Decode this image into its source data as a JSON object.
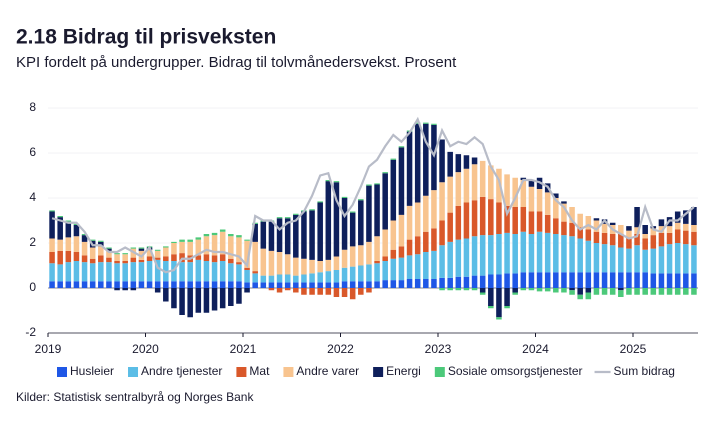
{
  "chart_data": {
    "type": "bar",
    "stacked": true,
    "title": "2.18 Bidrag til prisveksten",
    "subtitle": "KPI fordelt på undergrupper. Bidrag til tolvmånedersvekst. Prosent",
    "source": "Kilder: Statistisk sentralbyrå og Norges Bank",
    "categories": [
      "2019",
      null,
      null,
      null,
      null,
      null,
      null,
      null,
      null,
      null,
      null,
      null,
      "2020",
      null,
      null,
      null,
      null,
      null,
      null,
      null,
      null,
      null,
      null,
      null,
      "2021",
      null,
      null,
      null,
      null,
      null,
      null,
      null,
      null,
      null,
      null,
      null,
      "2022",
      null,
      null,
      null,
      null,
      null,
      null,
      null,
      null,
      null,
      null,
      null,
      "2023",
      null,
      null,
      null,
      null,
      null,
      null,
      null,
      null,
      null,
      null,
      null,
      "2024",
      null,
      null,
      null,
      null,
      null,
      null,
      null,
      null,
      null,
      null,
      null,
      "2025",
      null,
      null,
      null,
      null,
      null,
      null,
      null
    ],
    "ylim": [
      -2,
      8
    ],
    "yticks": [
      -2,
      0,
      2,
      4,
      6,
      8
    ],
    "series": [
      {
        "name": "Husleier",
        "color": "#1f57e6",
        "values": [
          0.3,
          0.3,
          0.3,
          0.3,
          0.3,
          0.3,
          0.3,
          0.3,
          0.3,
          0.3,
          0.3,
          0.3,
          0.3,
          0.3,
          0.3,
          0.3,
          0.3,
          0.3,
          0.3,
          0.3,
          0.3,
          0.3,
          0.3,
          0.3,
          0.25,
          0.25,
          0.25,
          0.25,
          0.25,
          0.25,
          0.25,
          0.25,
          0.25,
          0.25,
          0.25,
          0.25,
          0.3,
          0.3,
          0.3,
          0.3,
          0.3,
          0.35,
          0.35,
          0.35,
          0.4,
          0.4,
          0.4,
          0.4,
          0.45,
          0.45,
          0.5,
          0.5,
          0.55,
          0.55,
          0.6,
          0.6,
          0.65,
          0.65,
          0.7,
          0.7,
          0.7,
          0.7,
          0.7,
          0.7,
          0.7,
          0.7,
          0.7,
          0.7,
          0.7,
          0.7,
          0.7,
          0.7,
          0.7,
          0.7,
          0.65,
          0.65,
          0.65,
          0.65,
          0.65,
          0.65
        ]
      },
      {
        "name": "Andre tjenester",
        "color": "#5bbde6",
        "values": [
          0.8,
          0.75,
          0.85,
          0.9,
          0.85,
          0.8,
          0.85,
          0.85,
          0.8,
          0.8,
          0.85,
          0.85,
          0.9,
          0.95,
          0.9,
          0.9,
          0.85,
          0.85,
          0.95,
          0.9,
          0.85,
          0.9,
          0.8,
          0.75,
          0.55,
          0.4,
          0.3,
          0.3,
          0.35,
          0.35,
          0.3,
          0.35,
          0.4,
          0.45,
          0.5,
          0.55,
          0.6,
          0.65,
          0.7,
          0.75,
          0.8,
          0.85,
          0.95,
          1.0,
          1.05,
          1.1,
          1.2,
          1.25,
          1.45,
          1.6,
          1.65,
          1.7,
          1.75,
          1.8,
          1.75,
          1.8,
          1.8,
          1.75,
          1.8,
          1.7,
          1.8,
          1.75,
          1.7,
          1.65,
          1.6,
          1.5,
          1.4,
          1.3,
          1.25,
          1.2,
          1.1,
          1.05,
          1.2,
          1.0,
          1.1,
          1.2,
          1.3,
          1.35,
          1.3,
          1.25
        ]
      },
      {
        "name": "Mat",
        "color": "#d9582a",
        "values": [
          0.5,
          0.6,
          0.5,
          0.4,
          0.3,
          0.2,
          0.3,
          0.2,
          0.1,
          0.1,
          0.2,
          0.1,
          0.2,
          0.1,
          0.2,
          0.3,
          0.4,
          0.3,
          0.2,
          0.3,
          0.3,
          0.3,
          0.2,
          0.1,
          0.1,
          0.1,
          0.0,
          -0.1,
          -0.2,
          -0.1,
          -0.2,
          -0.3,
          -0.3,
          -0.3,
          -0.3,
          -0.4,
          -0.4,
          -0.5,
          -0.3,
          -0.2,
          0.1,
          0.2,
          0.4,
          0.5,
          0.7,
          0.8,
          0.9,
          1.0,
          1.1,
          1.3,
          1.5,
          1.6,
          1.6,
          1.7,
          1.6,
          1.4,
          1.2,
          1.2,
          1.1,
          1.0,
          0.9,
          0.8,
          0.7,
          0.6,
          0.6,
          0.5,
          0.5,
          0.5,
          0.5,
          0.5,
          0.6,
          0.5,
          0.5,
          0.5,
          0.6,
          0.6,
          0.5,
          0.6,
          0.6,
          0.6
        ]
      },
      {
        "name": "Andre varer",
        "color": "#f8c48f",
        "values": [
          0.6,
          0.5,
          0.6,
          0.7,
          0.6,
          0.5,
          0.4,
          0.3,
          0.3,
          0.3,
          0.4,
          0.4,
          0.3,
          0.3,
          0.4,
          0.5,
          0.5,
          0.6,
          0.7,
          0.8,
          0.9,
          1.0,
          1.0,
          1.1,
          1.2,
          1.3,
          1.2,
          1.1,
          1.0,
          0.9,
          0.8,
          0.7,
          0.6,
          0.5,
          0.5,
          0.6,
          0.8,
          0.9,
          0.9,
          1.0,
          1.1,
          1.2,
          1.3,
          1.4,
          1.5,
          1.5,
          1.6,
          1.7,
          1.7,
          1.6,
          1.5,
          1.5,
          1.6,
          1.6,
          1.5,
          1.5,
          1.4,
          1.3,
          1.2,
          1.1,
          1.0,
          1.0,
          0.9,
          0.8,
          0.7,
          0.6,
          0.6,
          0.5,
          0.4,
          0.4,
          0.4,
          0.3,
          0.3,
          0.2,
          0.3,
          0.3,
          0.3,
          0.3,
          0.3,
          0.3
        ]
      },
      {
        "name": "Energi",
        "color": "#0e1f5b",
        "values": [
          1.2,
          1.0,
          0.7,
          0.5,
          0.3,
          0.3,
          0.2,
          0.1,
          -0.1,
          -0.1,
          -0.1,
          0.1,
          0.1,
          -0.2,
          -0.6,
          -0.9,
          -1.2,
          -1.3,
          -1.1,
          -1.1,
          -1.0,
          -0.9,
          -0.8,
          -0.7,
          -0.2,
          0.8,
          1.2,
          1.3,
          1.5,
          1.6,
          1.9,
          2.1,
          2.2,
          2.6,
          3.5,
          3.3,
          2.3,
          1.5,
          2.0,
          2.5,
          2.3,
          2.5,
          2.7,
          3.0,
          3.3,
          3.5,
          3.2,
          2.9,
          1.9,
          1.1,
          0.8,
          0.6,
          0.3,
          -0.2,
          -0.8,
          -1.3,
          -0.8,
          -0.2,
          0.1,
          0.3,
          0.5,
          0.4,
          0.2,
          0.1,
          -0.1,
          -0.3,
          -0.2,
          0.1,
          0.2,
          0.1,
          -0.1,
          0.2,
          0.9,
          0.4,
          0.1,
          0.3,
          0.4,
          0.5,
          0.6,
          0.8
        ]
      },
      {
        "name": "Sosiale omsorgstjenester",
        "color": "#4cc97a",
        "values": [
          0.05,
          0.05,
          0.05,
          0.05,
          0.05,
          0.05,
          0.05,
          0.05,
          0.05,
          0.05,
          0.05,
          0.05,
          0.05,
          0.05,
          0.05,
          0.05,
          0.1,
          0.1,
          0.1,
          0.1,
          0.1,
          0.1,
          0.1,
          0.1,
          0.05,
          0.05,
          0.05,
          0.05,
          0.05,
          0.05,
          0.05,
          0.05,
          0.05,
          0.05,
          0.05,
          0.05,
          0.05,
          0.05,
          0.05,
          0.05,
          0.05,
          0.05,
          0.05,
          0.05,
          0.05,
          0.05,
          0.05,
          0.05,
          -0.1,
          -0.1,
          -0.1,
          -0.1,
          -0.1,
          -0.1,
          -0.1,
          -0.1,
          -0.1,
          -0.1,
          -0.1,
          -0.1,
          -0.15,
          -0.15,
          -0.2,
          -0.2,
          -0.2,
          -0.2,
          -0.3,
          -0.3,
          -0.3,
          -0.3,
          -0.3,
          -0.3,
          -0.3,
          -0.3,
          -0.3,
          -0.3,
          -0.3,
          -0.3,
          -0.3,
          -0.3
        ]
      },
      {
        "name": "Sum bidrag",
        "type": "line",
        "color": "#b8bcc8",
        "values": [
          3.1,
          3.0,
          2.9,
          2.9,
          2.5,
          1.9,
          1.9,
          1.6,
          1.6,
          1.8,
          1.6,
          1.4,
          1.8,
          0.9,
          0.7,
          0.8,
          1.3,
          1.3,
          1.5,
          1.7,
          1.6,
          1.6,
          1.5,
          1.4,
          1.0,
          3.2,
          3.0,
          3.0,
          2.6,
          2.9,
          3.0,
          3.4,
          4.1,
          5.0,
          5.1,
          3.9,
          3.2,
          3.7,
          4.5,
          5.4,
          5.7,
          6.3,
          6.8,
          6.5,
          6.9,
          7.5,
          6.5,
          5.9,
          7.0,
          6.3,
          6.5,
          6.4,
          6.7,
          6.4,
          5.4,
          4.8,
          3.3,
          4.0,
          4.8,
          4.8,
          4.7,
          4.5,
          3.9,
          3.6,
          3.0,
          2.6,
          2.8,
          2.6,
          3.0,
          2.6,
          2.4,
          2.2,
          2.3,
          3.6,
          2.6,
          2.5,
          3.0,
          3.0,
          3.3,
          3.6
        ]
      }
    ]
  }
}
